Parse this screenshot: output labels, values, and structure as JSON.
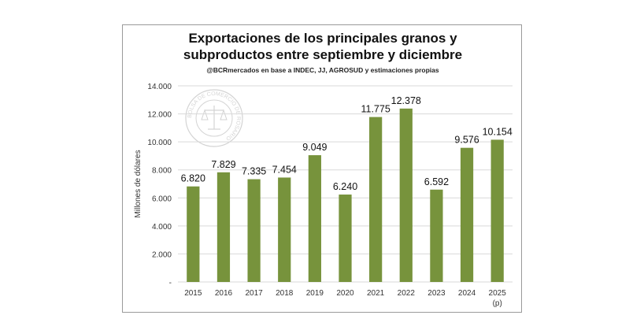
{
  "chart_data": {
    "type": "bar",
    "title_line1": "Exportaciones de los principales granos y",
    "title_line2": "subproductos entre septiembre y diciembre",
    "subtitle": "@BCRmercados en base a INDEC, JJ, AGROSUD y estimaciones propias",
    "ylabel": "Millones de dólares",
    "xlabel": "",
    "ylim": [
      0,
      14000
    ],
    "yticks": [
      0,
      2000,
      4000,
      6000,
      8000,
      10000,
      12000,
      14000
    ],
    "ytick_labels": [
      "-",
      "2.000",
      "4.000",
      "6.000",
      "8.000",
      "10.000",
      "12.000",
      "14.000"
    ],
    "categories": [
      "2015",
      "2016",
      "2017",
      "2018",
      "2019",
      "2020",
      "2021",
      "2022",
      "2023",
      "2024",
      "2025"
    ],
    "category_sublabels": [
      "",
      "",
      "",
      "",
      "",
      "",
      "",
      "",
      "",
      "",
      "(p)"
    ],
    "values": [
      6820,
      7829,
      7335,
      7454,
      9049,
      6240,
      11775,
      12378,
      6592,
      9576,
      10154
    ],
    "value_labels": [
      "6.820",
      "7.829",
      "7.335",
      "7.454",
      "9.049",
      "6.240",
      "11.775",
      "12.378",
      "6.592",
      "9.576",
      "10.154"
    ],
    "bar_color": "#77933c",
    "grid": true,
    "legend": "none"
  },
  "watermark": {
    "ring_text": "BOLSA DE COMERCIO DE ROSARIO"
  }
}
